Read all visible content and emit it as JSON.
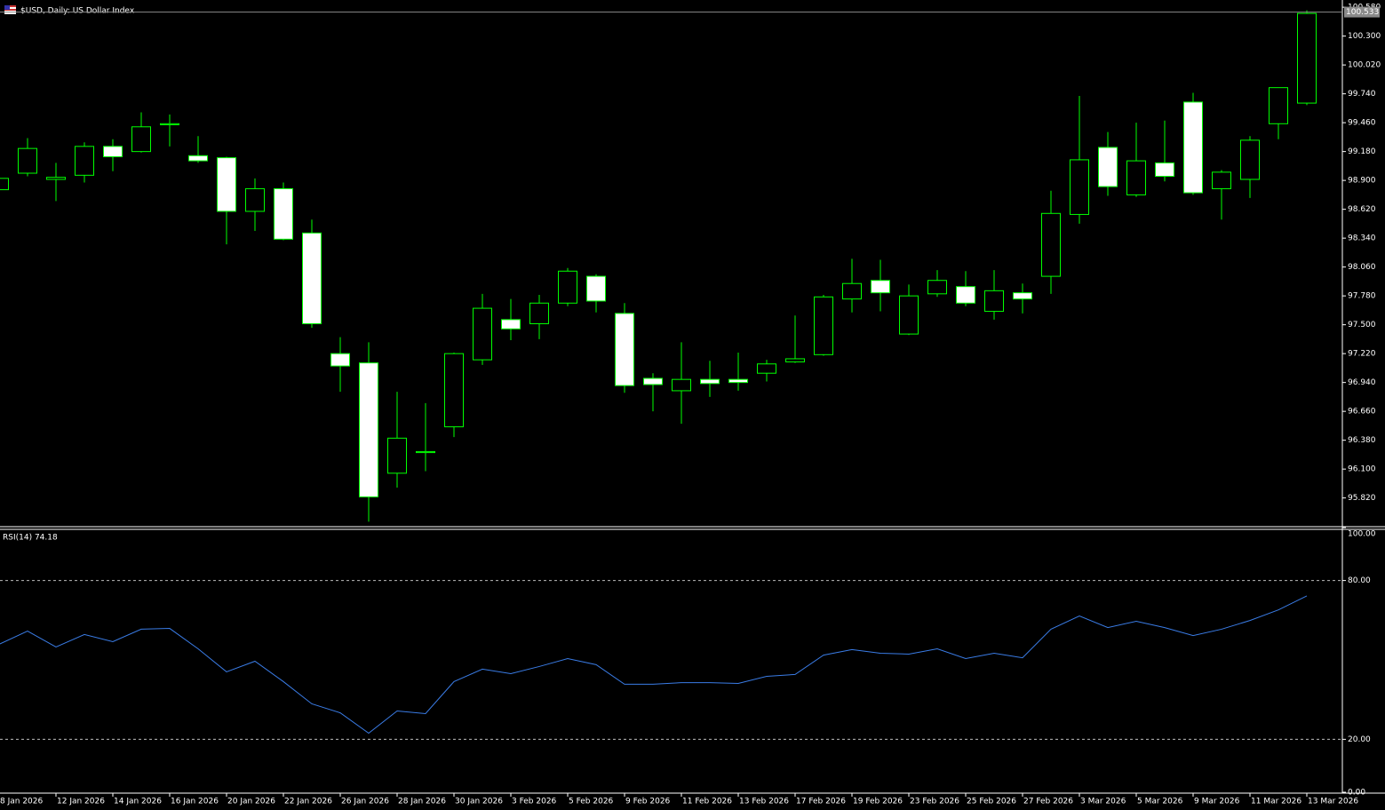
{
  "chart_data": [
    {
      "type": "candlestick",
      "title": "$USD, Daily:  US Dollar Index",
      "categories": [
        "8 Jan 2026",
        null,
        "12 Jan 2026",
        null,
        "14 Jan 2026",
        null,
        "16 Jan 2026",
        null,
        "20 Jan 2026",
        null,
        "22 Jan 2026",
        null,
        "26 Jan 2026",
        null,
        "28 Jan 2026",
        null,
        "30 Jan 2026",
        null,
        "3 Feb 2026",
        null,
        "5 Feb 2026",
        null,
        "9 Feb 2026",
        null,
        "11 Feb 2026",
        null,
        "13 Feb 2026",
        null,
        "17 Feb 2026",
        null,
        "19 Feb 2026",
        null,
        "23 Feb 2026",
        null,
        "25 Feb 2026",
        null,
        "27 Feb 2026",
        null,
        "3 Mar 2026",
        null,
        "5 Mar 2026",
        null,
        "9 Mar 2026",
        null,
        "11 Mar 2026",
        null,
        "13 Mar 2026"
      ],
      "open": [
        98.81,
        98.97,
        98.91,
        98.95,
        99.23,
        99.18,
        99.44,
        99.14,
        99.12,
        98.6,
        98.82,
        98.39,
        97.22,
        97.13,
        96.06,
        96.26,
        96.51,
        97.16,
        97.55,
        97.51,
        97.71,
        97.97,
        97.61,
        96.98,
        96.86,
        96.97,
        96.97,
        97.03,
        97.14,
        97.21,
        97.75,
        97.93,
        97.41,
        97.8,
        97.87,
        97.63,
        97.81,
        97.97,
        98.57,
        99.22,
        98.76,
        99.07,
        99.66,
        98.82,
        98.91,
        99.45,
        99.65
      ],
      "high": [
        98.95,
        99.31,
        99.07,
        99.27,
        99.3,
        99.56,
        99.54,
        99.33,
        99.13,
        98.92,
        98.88,
        98.52,
        97.38,
        97.33,
        96.85,
        96.74,
        97.23,
        97.8,
        97.75,
        97.79,
        98.05,
        97.99,
        97.71,
        97.03,
        97.33,
        97.15,
        97.23,
        97.16,
        97.59,
        97.79,
        98.14,
        98.13,
        97.89,
        98.03,
        98.02,
        98.03,
        97.9,
        98.8,
        99.72,
        99.37,
        99.46,
        99.48,
        99.75,
        99.0,
        99.33,
        99.8,
        100.55
      ],
      "low": [
        98.78,
        98.94,
        98.7,
        98.88,
        98.99,
        99.17,
        99.23,
        99.07,
        98.28,
        98.41,
        98.32,
        97.47,
        96.85,
        95.59,
        95.92,
        96.08,
        96.41,
        97.11,
        97.35,
        97.36,
        97.68,
        97.62,
        96.84,
        96.66,
        96.54,
        96.8,
        96.86,
        96.95,
        97.13,
        97.2,
        97.62,
        97.63,
        97.4,
        97.77,
        97.68,
        97.55,
        97.61,
        97.8,
        98.48,
        98.75,
        98.74,
        98.89,
        98.76,
        98.52,
        98.73,
        99.3,
        99.63
      ],
      "close": [
        98.92,
        99.21,
        98.93,
        99.23,
        99.13,
        99.42,
        99.45,
        99.09,
        98.6,
        98.82,
        98.33,
        97.51,
        97.1,
        95.83,
        96.4,
        96.27,
        97.22,
        97.66,
        97.46,
        97.71,
        98.02,
        97.73,
        96.91,
        96.92,
        96.97,
        96.93,
        96.94,
        97.12,
        97.17,
        97.77,
        97.9,
        97.81,
        97.78,
        97.93,
        97.71,
        97.83,
        97.75,
        98.58,
        99.1,
        98.84,
        99.09,
        98.94,
        98.78,
        98.98,
        99.29,
        99.8,
        100.52
      ],
      "up_color": "#000000",
      "down_color": "#ffffff",
      "wick_color": "#00ff00",
      "last_price": 100.533,
      "ylim": [
        95.55,
        100.65
      ],
      "yticks": [
        {
          "value": 95.82,
          "label": "95.820"
        },
        {
          "value": 96.1,
          "label": "96.100"
        },
        {
          "value": 96.38,
          "label": "96.380"
        },
        {
          "value": 96.66,
          "label": "96.660"
        },
        {
          "value": 96.94,
          "label": "96.940"
        },
        {
          "value": 97.22,
          "label": "97.220"
        },
        {
          "value": 97.5,
          "label": "97.500"
        },
        {
          "value": 97.78,
          "label": "97.780"
        },
        {
          "value": 98.06,
          "label": "98.060"
        },
        {
          "value": 98.34,
          "label": "98.340"
        },
        {
          "value": 98.62,
          "label": "98.620"
        },
        {
          "value": 98.9,
          "label": "98.900"
        },
        {
          "value": 99.18,
          "label": "99.180"
        },
        {
          "value": 99.46,
          "label": "99.460"
        },
        {
          "value": 99.74,
          "label": "99.740"
        },
        {
          "value": 100.02,
          "label": "100.020"
        },
        {
          "value": 100.3,
          "label": "100.300"
        },
        {
          "value": 100.58,
          "label": "100.580"
        }
      ]
    },
    {
      "type": "line",
      "title": "RSI(14) 74.18",
      "color": "#3a7ce6",
      "values": [
        55.9,
        60.9,
        54.9,
        59.6,
        56.9,
        61.6,
        61.9,
        54.2,
        45.5,
        49.5,
        41.8,
        33.4,
        30.0,
        22.3,
        30.7,
        29.7,
        41.8,
        46.5,
        44.8,
        47.5,
        50.5,
        48.2,
        40.8,
        40.8,
        41.4,
        41.4,
        41.1,
        43.8,
        44.5,
        51.8,
        53.9,
        52.5,
        52.2,
        54.2,
        50.5,
        52.5,
        50.8,
        61.6,
        66.6,
        62.2,
        64.6,
        62.2,
        59.2,
        61.6,
        64.9,
        68.9,
        74.18
      ],
      "ylim": [
        0,
        100
      ],
      "yticks": [
        {
          "value": 0,
          "label": "0.00"
        },
        {
          "value": 20,
          "label": "20.00"
        },
        {
          "value": 80,
          "label": "80.00"
        },
        {
          "value": 100,
          "label": "100.00"
        }
      ],
      "levels": [
        80,
        20
      ]
    }
  ]
}
